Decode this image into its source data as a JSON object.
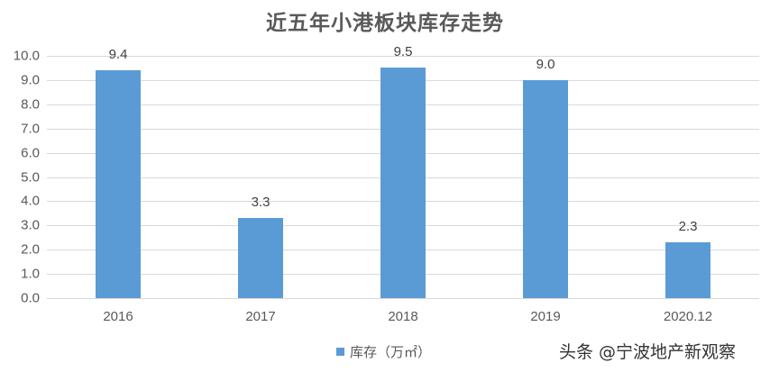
{
  "chart_data": {
    "type": "bar",
    "title": "近五年小港板块库存走势",
    "categories": [
      "2016",
      "2017",
      "2018",
      "2019",
      "2020.12"
    ],
    "series": [
      {
        "name": "库存（万㎡）",
        "values": [
          9.4,
          3.3,
          9.5,
          9.0,
          2.3
        ],
        "color": "#5b9bd5"
      }
    ],
    "data_labels": [
      "9.4",
      "3.3",
      "9.5",
      "9.0",
      "2.3"
    ],
    "xlabel": "",
    "ylabel": "",
    "ylim": [
      0,
      10
    ],
    "yticks": [
      "0.0",
      "1.0",
      "2.0",
      "3.0",
      "4.0",
      "5.0",
      "6.0",
      "7.0",
      "8.0",
      "9.0",
      "10.0"
    ],
    "grid": true,
    "legend_position": "bottom"
  },
  "legend": {
    "label": "库存（万㎡）"
  },
  "watermark": "头条 @宁波地产新观察"
}
